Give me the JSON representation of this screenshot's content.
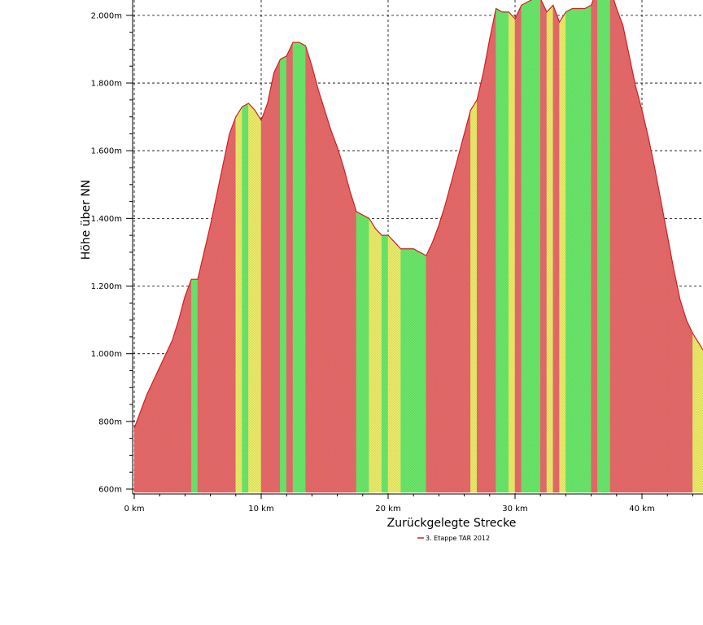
{
  "chart_data": {
    "type": "area",
    "title": "",
    "xlabel": "Zurückgelegte Strecke",
    "ylabel": "Höhe über NN",
    "x_unit": "km",
    "y_unit": "m",
    "xlim": [
      0,
      45
    ],
    "ylim": [
      600,
      2100
    ],
    "x_ticks": [
      0,
      10,
      20,
      30,
      40
    ],
    "x_tick_labels": [
      "0 km",
      "10 km",
      "20 km",
      "30 km",
      "40 km"
    ],
    "y_ticks": [
      600,
      800,
      1000,
      1200,
      1400,
      1600,
      1800,
      2000
    ],
    "y_tick_labels": [
      "600m",
      "800m",
      "1.000m",
      "1.200m",
      "1.400m",
      "1.600m",
      "1.800m",
      "2.000m"
    ],
    "grid": true,
    "legend_position": "bottom-center",
    "series": [
      {
        "name": "3. Etappe TAR 2012",
        "color": "#cc2222",
        "x": [
          0,
          0.5,
          1,
          1.5,
          2,
          2.5,
          3,
          3.5,
          4,
          4.5,
          5,
          5.5,
          6,
          6.5,
          7,
          7.5,
          8,
          8.5,
          9,
          9.5,
          10,
          10.5,
          11,
          11.5,
          12,
          12.5,
          13,
          13.5,
          14,
          14.5,
          15,
          15.5,
          16,
          16.5,
          17,
          17.5,
          18,
          18.5,
          19,
          19.5,
          20,
          20.5,
          21,
          21.5,
          22,
          22.5,
          23,
          23.5,
          24,
          24.5,
          25,
          25.5,
          26,
          26.5,
          27,
          27.5,
          28,
          28.5,
          29,
          29.5,
          30,
          30.5,
          31,
          31.5,
          32,
          32.5,
          33,
          33.5,
          34,
          34.5,
          35,
          35.5,
          36,
          36.5,
          37,
          37.5,
          38,
          38.5,
          39,
          39.5,
          40,
          40.5,
          41,
          41.5,
          42,
          42.5,
          43,
          43.5,
          44,
          44.5,
          45
        ],
        "y": [
          780,
          830,
          880,
          920,
          960,
          1000,
          1040,
          1100,
          1170,
          1220,
          1220,
          1300,
          1380,
          1470,
          1560,
          1650,
          1700,
          1730,
          1740,
          1720,
          1690,
          1740,
          1830,
          1870,
          1880,
          1920,
          1920,
          1910,
          1850,
          1780,
          1720,
          1660,
          1610,
          1550,
          1480,
          1420,
          1410,
          1400,
          1370,
          1350,
          1350,
          1330,
          1310,
          1310,
          1310,
          1300,
          1290,
          1330,
          1380,
          1440,
          1510,
          1580,
          1650,
          1720,
          1750,
          1830,
          1930,
          2020,
          2010,
          2010,
          1990,
          2030,
          2040,
          2050,
          2050,
          2010,
          2030,
          1980,
          2010,
          2020,
          2020,
          2020,
          2030,
          2080,
          2080,
          2080,
          2020,
          1970,
          1880,
          1790,
          1720,
          1640,
          1550,
          1450,
          1350,
          1250,
          1160,
          1100,
          1060,
          1030,
          1000
        ]
      }
    ],
    "grade_band_colors": {
      "steep": "#e86a6a",
      "moderate": "#ecec6a",
      "flat": "#6ae86a"
    }
  },
  "legend": {
    "label": "3. Etappe TAR 2012"
  }
}
